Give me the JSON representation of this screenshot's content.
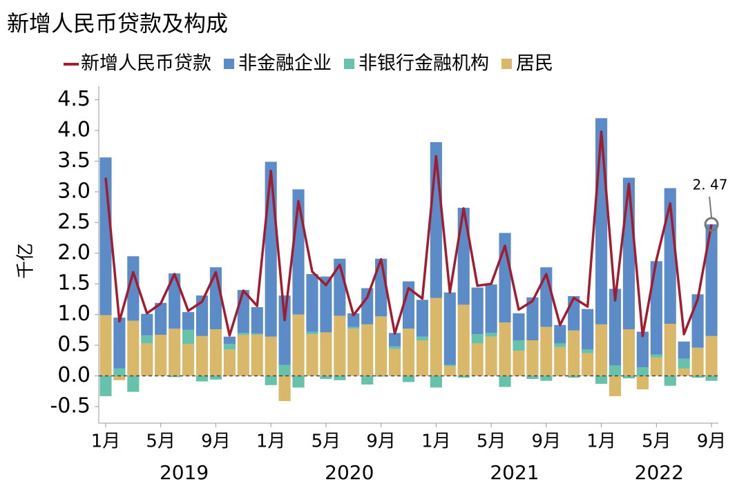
{
  "chart_data": {
    "type": "bar",
    "title": "新增人民币贷款及构成",
    "ylabel": "千亿",
    "categories": [
      "1月",
      null,
      null,
      null,
      "5月",
      null,
      null,
      null,
      "9月",
      null,
      null,
      null,
      "1月",
      null,
      null,
      null,
      "5月",
      null,
      null,
      null,
      "9月",
      null,
      null,
      null,
      "1月",
      null,
      null,
      null,
      "5月",
      null,
      null,
      null,
      "9月",
      null,
      null,
      null,
      "1月",
      null,
      null,
      null,
      "5月",
      null,
      null,
      null,
      "9月"
    ],
    "groups": [
      "2019",
      "2020",
      "2021",
      "2022"
    ],
    "series": [
      {
        "name": "新增人民币贷款",
        "type": "line",
        "color": "#a01c2e",
        "values": [
          3.23,
          0.89,
          1.69,
          1.02,
          1.18,
          1.66,
          1.06,
          1.21,
          1.69,
          0.66,
          1.39,
          1.14,
          3.34,
          0.91,
          2.85,
          1.7,
          1.48,
          1.81,
          0.99,
          1.28,
          1.9,
          0.69,
          1.43,
          1.26,
          3.58,
          1.36,
          2.73,
          1.47,
          1.5,
          2.12,
          1.08,
          1.22,
          1.66,
          0.83,
          1.27,
          1.13,
          3.98,
          1.23,
          3.13,
          0.65,
          1.89,
          2.81,
          0.68,
          1.25,
          2.47
        ]
      },
      {
        "name": "非金融企业",
        "type": "bar",
        "color": "#5b8cc8",
        "values": [
          2.57,
          0.83,
          1.05,
          0.35,
          0.52,
          0.9,
          0.29,
          0.66,
          1.01,
          0.12,
          0.7,
          0.43,
          2.85,
          1.13,
          2.04,
          0.94,
          0.91,
          0.93,
          0.22,
          0.59,
          0.94,
          0.22,
          0.77,
          0.6,
          2.54,
          1.18,
          1.58,
          0.76,
          0.79,
          1.46,
          0.44,
          0.7,
          0.97,
          0.3,
          0.56,
          0.66,
          3.36,
          1.25,
          2.47,
          0.58,
          1.52,
          2.21,
          0.28,
          0.87,
          1.82
        ]
      },
      {
        "name": "非银行金融机构",
        "type": "bar",
        "color": "#66c2aa",
        "values": [
          -0.33,
          0.12,
          -0.26,
          0.13,
          0.0,
          -0.02,
          0.23,
          -0.09,
          -0.06,
          0.09,
          0.03,
          0.02,
          -0.15,
          0.18,
          -0.19,
          0.04,
          -0.05,
          -0.07,
          0.03,
          -0.14,
          -0.01,
          0.04,
          -0.1,
          0.06,
          -0.19,
          0.02,
          -0.03,
          0.15,
          0.06,
          -0.18,
          0.17,
          -0.05,
          -0.08,
          0.06,
          -0.03,
          0.06,
          -0.13,
          0.17,
          -0.04,
          0.14,
          0.05,
          -0.16,
          0.16,
          -0.03,
          -0.08
        ]
      },
      {
        "name": "居民",
        "type": "bar",
        "color": "#d9b86a",
        "values": [
          0.99,
          -0.07,
          0.9,
          0.53,
          0.67,
          0.77,
          0.52,
          0.65,
          0.76,
          0.43,
          0.67,
          0.67,
          0.64,
          -0.41,
          1.0,
          0.68,
          0.71,
          0.98,
          0.77,
          0.84,
          0.97,
          0.44,
          0.77,
          0.58,
          1.27,
          0.16,
          1.16,
          0.53,
          0.64,
          0.87,
          0.41,
          0.58,
          0.8,
          0.47,
          0.74,
          0.37,
          0.84,
          -0.33,
          0.76,
          -0.22,
          0.3,
          0.85,
          0.12,
          0.46,
          0.65
        ]
      }
    ],
    "annotation": "2. 47",
    "ylim": [
      -0.77,
      4.72
    ],
    "yticks": [
      -0.5,
      {
        "value": 0,
        "label": "0.0"
      },
      0.5,
      {
        "value": 1,
        "label": "1.0"
      },
      1.5,
      {
        "value": 2,
        "label": "2.0"
      },
      2.5,
      {
        "value": 3,
        "label": "3.0"
      },
      3.5,
      {
        "value": 4,
        "label": "4.0"
      },
      4.5
    ]
  }
}
